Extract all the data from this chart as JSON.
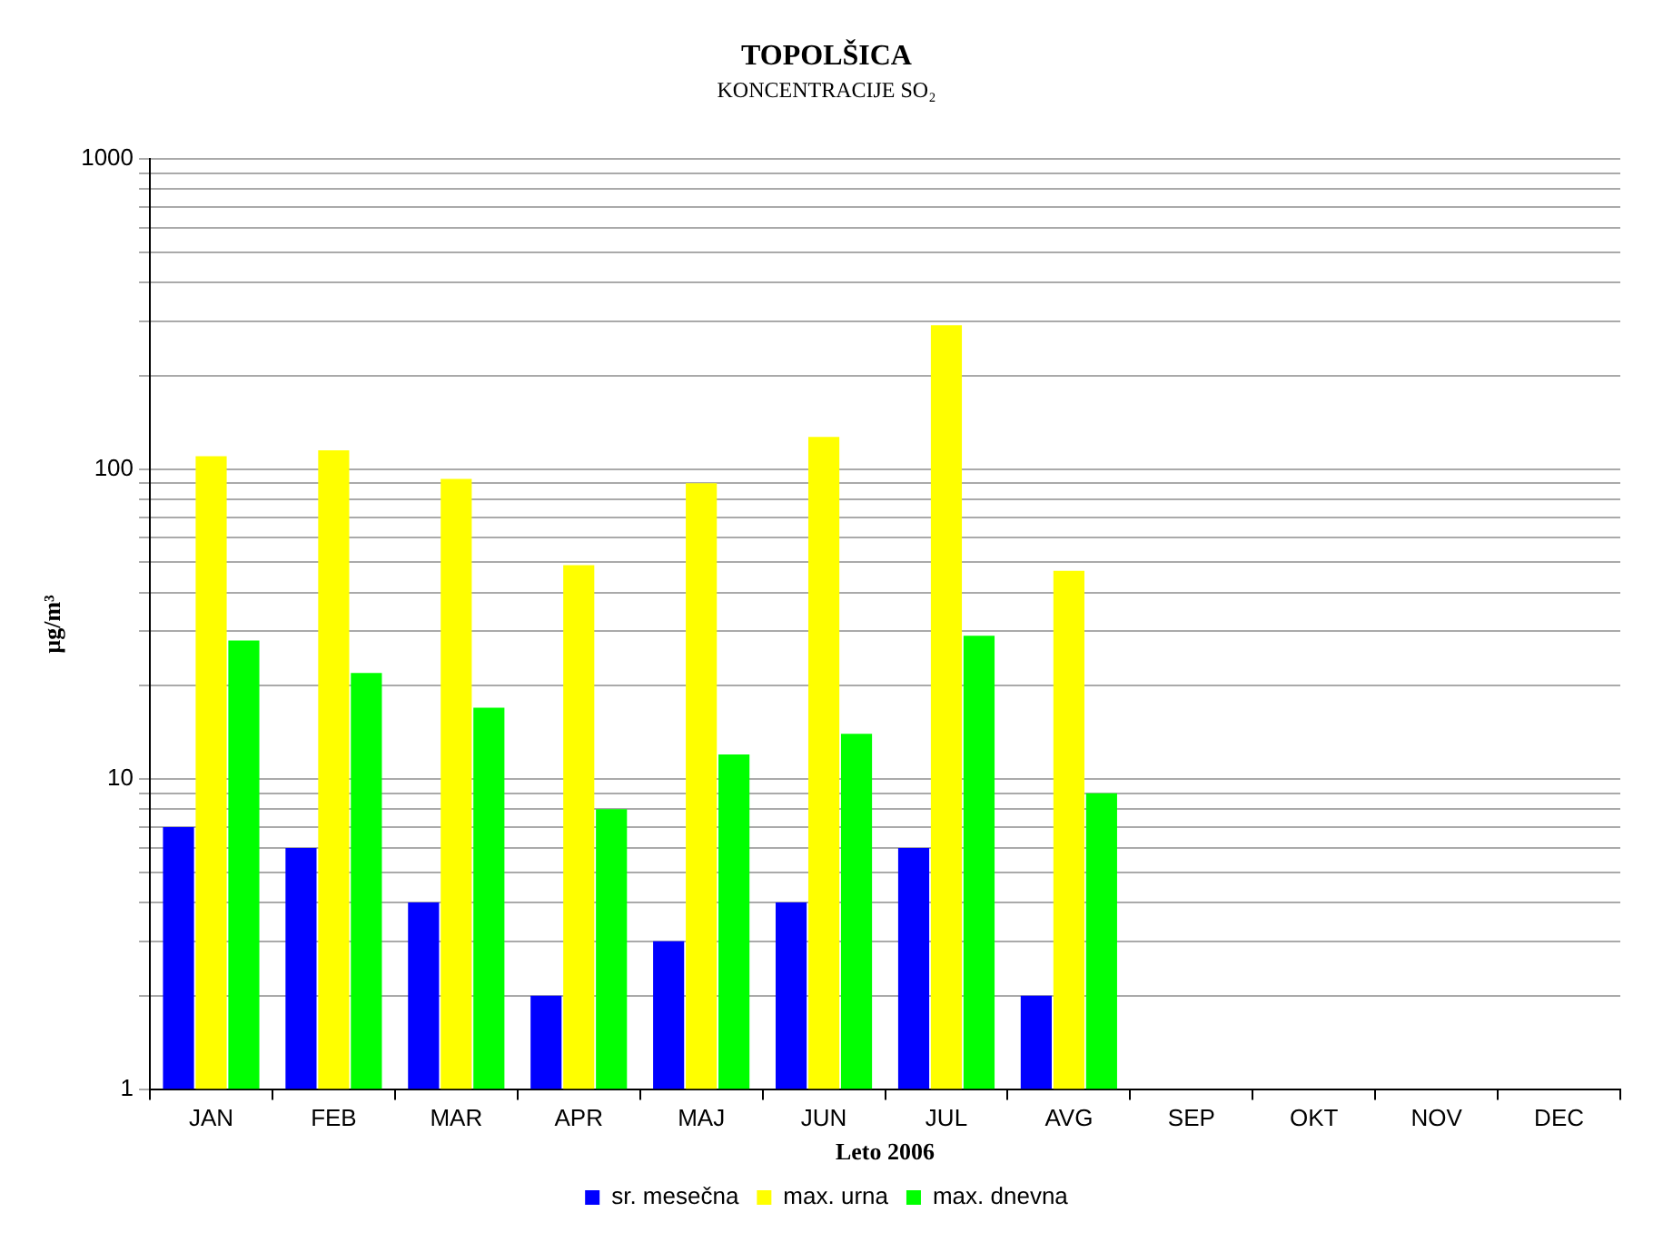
{
  "chart_data": {
    "type": "bar",
    "title": "TOPOLŠICA",
    "subtitle": "KONCENTRACIJE SO₂",
    "xlabel": "Leto 2006",
    "ylabel": "µg/m³",
    "categories": [
      "JAN",
      "FEB",
      "MAR",
      "APR",
      "MAJ",
      "JUN",
      "JUL",
      "AVG",
      "SEP",
      "OKT",
      "NOV",
      "DEC"
    ],
    "series": [
      {
        "name": "sr. mesečna",
        "color": "#0000ff",
        "values": [
          7,
          6,
          4,
          2,
          3,
          4,
          6,
          2,
          null,
          null,
          null,
          null
        ]
      },
      {
        "name": "max. urna",
        "color": "#ffff00",
        "values": [
          110,
          115,
          93,
          49,
          90,
          127,
          291,
          47,
          null,
          null,
          null,
          null
        ]
      },
      {
        "name": "max. dnevna",
        "color": "#00ff00",
        "values": [
          28,
          22,
          17,
          8,
          12,
          14,
          29,
          9,
          null,
          null,
          null,
          null
        ]
      }
    ],
    "log": "y",
    "ylim": [
      1,
      1000
    ],
    "yticks": [
      1,
      {
        "value": 2,
        "label": null
      },
      {
        "value": 3,
        "label": null
      },
      {
        "value": 4,
        "label": null
      },
      {
        "value": 5,
        "label": null
      },
      {
        "value": 6,
        "label": null
      },
      {
        "value": 7,
        "label": null
      },
      {
        "value": 8,
        "label": null
      },
      {
        "value": 9,
        "label": null
      },
      10,
      {
        "value": 20,
        "label": null
      },
      {
        "value": 30,
        "label": null
      },
      {
        "value": 40,
        "label": null
      },
      {
        "value": 50,
        "label": null
      },
      {
        "value": 60,
        "label": null
      },
      {
        "value": 70,
        "label": null
      },
      {
        "value": 80,
        "label": null
      },
      {
        "value": 90,
        "label": null
      },
      100,
      {
        "value": 200,
        "label": null
      },
      {
        "value": 300,
        "label": null
      },
      {
        "value": 400,
        "label": null
      },
      {
        "value": 500,
        "label": null
      },
      {
        "value": 600,
        "label": null
      },
      {
        "value": 700,
        "label": null
      },
      {
        "value": 800,
        "label": null
      },
      {
        "value": 900,
        "label": null
      },
      1000
    ],
    "grid": "y",
    "legend": "bottom"
  }
}
